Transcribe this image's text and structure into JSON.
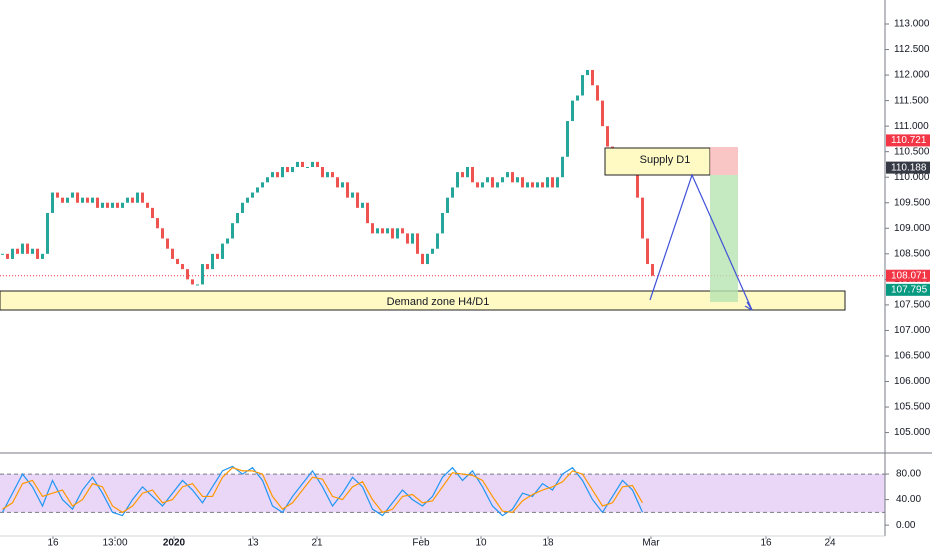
{
  "chart_data": [
    {
      "type": "candlestick",
      "xlim": [
        0,
        177
      ],
      "xticks": [
        {
          "value": 10.6,
          "label": "16"
        },
        {
          "value": 23,
          "label": "13:00"
        },
        {
          "value": 34.8,
          "label": "2020",
          "bold": true
        },
        {
          "value": 50.6,
          "label": "13"
        },
        {
          "value": 63.4,
          "label": "21"
        },
        {
          "value": 84.2,
          "label": "Feb"
        },
        {
          "value": 96.2,
          "label": "10"
        },
        {
          "value": 109.6,
          "label": "18"
        },
        {
          "value": 130.2,
          "label": "Mar"
        },
        {
          "value": 153.2,
          "label": "16"
        },
        {
          "value": 166,
          "label": "24"
        }
      ],
      "ylim": [
        104.6,
        113.47
      ],
      "yticks": [
        {
          "value": 105,
          "label": "105.000"
        },
        {
          "value": 105.5,
          "label": "105.500"
        },
        {
          "value": 106,
          "label": "106.000"
        },
        {
          "value": 106.5,
          "label": "106.500"
        },
        {
          "value": 107,
          "label": "107.000"
        },
        {
          "value": 107.5,
          "label": "107.500"
        },
        {
          "value": 108,
          "label": "108.000"
        },
        {
          "value": 108.5,
          "label": "108.500"
        },
        {
          "value": 109,
          "label": "109.000"
        },
        {
          "value": 109.5,
          "label": "109.500"
        },
        {
          "value": 110,
          "label": "110.000"
        },
        {
          "value": 110.5,
          "label": "110.500"
        },
        {
          "value": 111,
          "label": "111.000"
        },
        {
          "value": 111.5,
          "label": "111.500"
        },
        {
          "value": 112,
          "label": "112.000"
        },
        {
          "value": 112.5,
          "label": "112.500"
        },
        {
          "value": 113,
          "label": "113.000"
        }
      ],
      "up_color": "#26a69a",
      "down_color": "#ef5350",
      "closes": [
        108.5,
        108.4,
        108.6,
        108.5,
        108.7,
        108.5,
        108.6,
        108.4,
        108.5,
        109.3,
        109.7,
        109.6,
        109.5,
        109.6,
        109.7,
        109.5,
        109.6,
        109.5,
        109.6,
        109.4,
        109.5,
        109.4,
        109.5,
        109.4,
        109.5,
        109.6,
        109.5,
        109.7,
        109.5,
        109.4,
        109.2,
        109.0,
        108.8,
        108.6,
        108.4,
        108.3,
        108.2,
        108.0,
        107.9,
        107.9,
        108.3,
        108.2,
        108.5,
        108.4,
        108.7,
        108.8,
        109.1,
        109.3,
        109.5,
        109.6,
        109.7,
        109.8,
        109.9,
        110.0,
        110.1,
        110.0,
        110.2,
        110.1,
        110.2,
        110.3,
        110.2,
        110.2,
        110.3,
        110.2,
        110.0,
        110.1,
        110.0,
        109.8,
        109.9,
        109.6,
        109.7,
        109.4,
        109.5,
        109.1,
        108.9,
        109.0,
        108.9,
        109.0,
        108.8,
        109.0,
        108.9,
        108.7,
        108.9,
        108.5,
        108.3,
        108.5,
        108.6,
        108.9,
        109.3,
        109.6,
        109.8,
        110.1,
        110.0,
        110.2,
        109.9,
        109.8,
        109.9,
        110.0,
        109.8,
        109.9,
        110.0,
        110.1,
        109.9,
        110.0,
        109.8,
        109.9,
        109.8,
        109.9,
        109.8,
        110.0,
        109.8,
        110.0,
        110.4,
        111.1,
        111.5,
        111.6,
        112.0,
        112.1,
        111.8,
        111.5,
        111.0,
        110.6,
        110.3,
        110.4,
        110.2,
        110.5,
        110.2,
        109.6,
        108.8,
        108.3,
        108.071
      ],
      "price_line": {
        "value": 108.071,
        "color": "#f23645"
      },
      "price_labels": [
        {
          "value": 110.721,
          "color": "#f23645"
        },
        {
          "value": 110.188,
          "color": "#363a45"
        },
        {
          "value": 108.071,
          "color": "#f23645"
        },
        {
          "value": 107.795,
          "color": "#089981"
        }
      ],
      "annotations": [
        "Supply D1",
        "Demand zone H4/D1"
      ]
    },
    {
      "type": "oscillator",
      "ylim": [
        -17,
        113
      ],
      "yticks": [
        {
          "value": 0,
          "label": "0.00"
        },
        {
          "value": 40,
          "label": "40.00"
        },
        {
          "value": 80,
          "label": "80.00"
        }
      ],
      "bands": [
        20,
        80
      ],
      "band_color": "#e1c6f5",
      "series": [
        {
          "color": "#2196f3",
          "values": [
            20,
            50,
            80,
            60,
            30,
            70,
            40,
            25,
            55,
            75,
            50,
            20,
            15,
            40,
            60,
            45,
            30,
            50,
            70,
            55,
            35,
            60,
            85,
            92,
            80,
            90,
            70,
            30,
            20,
            45,
            65,
            85,
            60,
            30,
            50,
            75,
            60,
            25,
            15,
            35,
            55,
            40,
            30,
            45,
            75,
            90,
            70,
            85,
            60,
            30,
            15,
            25,
            50,
            45,
            65,
            55,
            80,
            90,
            70,
            40,
            20,
            45,
            70,
            55,
            20
          ]
        },
        {
          "color": "#ff9800",
          "values": [
            25,
            35,
            65,
            70,
            45,
            50,
            55,
            30,
            40,
            65,
            60,
            30,
            20,
            30,
            50,
            55,
            35,
            40,
            60,
            65,
            45,
            45,
            75,
            90,
            85,
            85,
            80,
            45,
            25,
            35,
            55,
            75,
            72,
            45,
            40,
            60,
            68,
            40,
            20,
            25,
            45,
            48,
            35,
            38,
            60,
            82,
            80,
            78,
            70,
            45,
            22,
            20,
            38,
            48,
            55,
            60,
            68,
            85,
            80,
            55,
            30,
            35,
            60,
            62,
            35
          ]
        }
      ]
    }
  ]
}
